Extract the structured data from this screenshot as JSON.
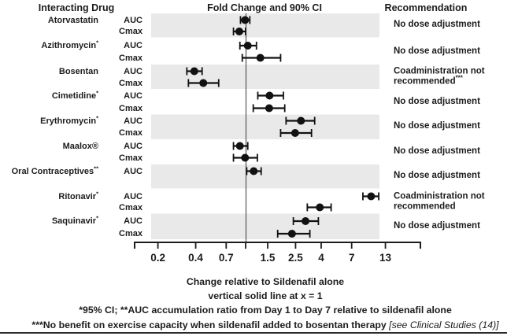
{
  "header": {
    "col_drug": "Interacting Drug",
    "col_chart": "Fold Change and 90% CI",
    "col_recommendation": "Recommendation"
  },
  "chart_data": {
    "type": "forest",
    "title": "Fold Change and 90% CI",
    "x_scale": "log",
    "x_ticks": [
      "0.2",
      "0.4",
      "0.7",
      "1.5",
      "2.5",
      "4",
      "7",
      "13"
    ],
    "x_tick_values": [
      0.2,
      0.4,
      0.7,
      1.5,
      2.5,
      4,
      7,
      13
    ],
    "x_range": [
      0.13,
      25
    ],
    "reference_line_x": 1,
    "xlabel": "Change relative to Sildenafil alone",
    "colors": {
      "ink": "#1c1c1c",
      "marker": "#111111",
      "band": "#e9e9e9",
      "reference_line": "#555555"
    },
    "groups": [
      {
        "drug": "Atorvastatin",
        "marker": "",
        "shaded": true,
        "recommendation": "No dose adjustment",
        "rec_marker": "",
        "rows": [
          {
            "metric": "AUC",
            "value": 0.99,
            "ci_low": 0.91,
            "ci_high": 1.08
          },
          {
            "metric": "Cmax",
            "value": 0.89,
            "ci_low": 0.8,
            "ci_high": 1.0
          }
        ]
      },
      {
        "drug": "Azithromycin",
        "marker": "*",
        "shaded": false,
        "recommendation": "No dose adjustment",
        "rec_marker": "",
        "rows": [
          {
            "metric": "AUC",
            "value": 1.04,
            "ci_low": 0.9,
            "ci_high": 1.22
          },
          {
            "metric": "Cmax",
            "value": 1.31,
            "ci_low": 0.94,
            "ci_high": 1.9
          }
        ]
      },
      {
        "drug": "Bosentan",
        "marker": "",
        "shaded": true,
        "recommendation": "Coadministration not recommended",
        "rec_marker": "***",
        "rows": [
          {
            "metric": "AUC",
            "value": 0.39,
            "ci_low": 0.34,
            "ci_high": 0.45
          },
          {
            "metric": "Cmax",
            "value": 0.46,
            "ci_low": 0.35,
            "ci_high": 0.61
          }
        ]
      },
      {
        "drug": "Cimetidine",
        "marker": "*",
        "shaded": false,
        "recommendation": "No dose adjustment",
        "rec_marker": "",
        "rows": [
          {
            "metric": "AUC",
            "value": 1.55,
            "ci_low": 1.25,
            "ci_high": 2.0
          },
          {
            "metric": "Cmax",
            "value": 1.54,
            "ci_low": 1.15,
            "ci_high": 2.05
          }
        ]
      },
      {
        "drug": "Erythromycin",
        "marker": "*",
        "shaded": true,
        "recommendation": "No dose adjustment",
        "rec_marker": "",
        "rows": [
          {
            "metric": "AUC",
            "value": 2.76,
            "ci_low": 2.1,
            "ci_high": 3.55
          },
          {
            "metric": "Cmax",
            "value": 2.48,
            "ci_low": 1.9,
            "ci_high": 3.35
          }
        ]
      },
      {
        "drug": "Maalox®",
        "marker": "",
        "shaded": false,
        "recommendation": "No dose adjustment",
        "rec_marker": "",
        "rows": [
          {
            "metric": "AUC",
            "value": 0.9,
            "ci_low": 0.8,
            "ci_high": 1.04
          },
          {
            "metric": "Cmax",
            "value": 0.99,
            "ci_low": 0.8,
            "ci_high": 1.24
          }
        ]
      },
      {
        "drug": "Oral Contraceptives",
        "marker": "**",
        "shaded": true,
        "recommendation": "No dose adjustment",
        "rec_marker": "",
        "rows": [
          {
            "metric": "AUC",
            "value": 1.16,
            "ci_low": 1.02,
            "ci_high": 1.33
          }
        ]
      },
      {
        "drug": "Ritonavir",
        "marker": "*",
        "shaded": false,
        "recommendation": "Coadministration not recommended",
        "rec_marker": "",
        "rows": [
          {
            "metric": "AUC",
            "value": 10.0,
            "ci_low": 8.6,
            "ci_high": 11.5
          },
          {
            "metric": "Cmax",
            "value": 3.9,
            "ci_low": 3.1,
            "ci_high": 4.8
          }
        ]
      },
      {
        "drug": "Saquinavir",
        "marker": "*",
        "shaded": true,
        "recommendation": "No dose adjustment",
        "rec_marker": "",
        "rows": [
          {
            "metric": "AUC",
            "value": 3.0,
            "ci_low": 2.4,
            "ci_high": 3.8
          },
          {
            "metric": "Cmax",
            "value": 2.34,
            "ci_low": 1.8,
            "ci_high": 3.25
          }
        ]
      }
    ]
  },
  "footnotes": {
    "line1": "vertical solid line at x = 1",
    "line2": "*95% CI; **AUC accumulation ratio from Day 1 to Day 7 relative to sildenafil alone",
    "line3": "***No benefit on exercise capacity when sildenafil added to bosentan therapy",
    "line3_italic": "[see Clinical Studies (14)]"
  }
}
